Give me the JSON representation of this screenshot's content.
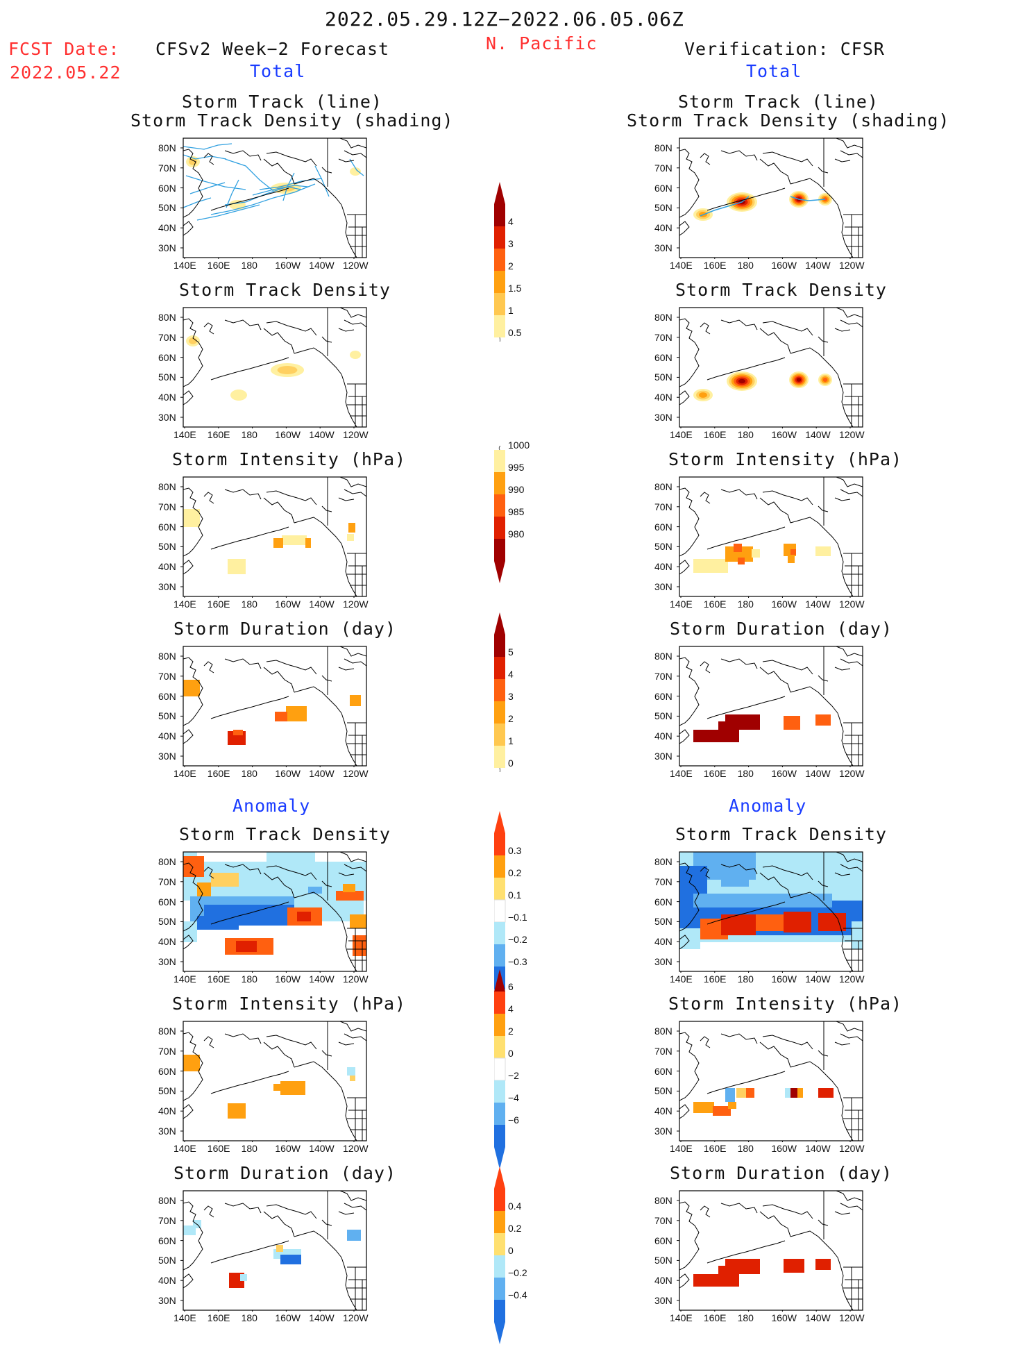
{
  "header": {
    "period": "2022.05.29.12Z−2022.06.05.06Z",
    "region": "N. Pacific",
    "fcst_label": "FCST Date:",
    "fcst_date": "2022.05.22",
    "left_column_title": "CFSv2 Week−2 Forecast",
    "right_column_title": "Verification: CFSR",
    "total_label": "Total",
    "anomaly_label": "Anomaly"
  },
  "axes": {
    "lat_labels": [
      "80N",
      "70N",
      "60N",
      "50N",
      "40N",
      "30N"
    ],
    "lon_labels": [
      "140E",
      "160E",
      "180",
      "160W",
      "140W",
      "120W"
    ]
  },
  "panel_titles": {
    "track_line": "Storm Track (line)",
    "track_density_shading": "Storm Track Density (shading)",
    "track_density": "Storm Track Density",
    "intensity": "Storm Intensity (hPa)",
    "duration": "Storm Duration (day)"
  },
  "colorbars": [
    {
      "id": "density_total",
      "labels": [
        "4",
        "3",
        "2",
        "1.5",
        "1",
        "0.5"
      ],
      "colors": [
        "#a00000",
        "#e02000",
        "#ff6010",
        "#ffa010",
        "#ffc850",
        "#fff0a0"
      ],
      "arrow_top": true,
      "arrow_bottom": false,
      "arrow_colors": [
        "#a00000"
      ]
    },
    {
      "id": "intensity_total",
      "labels": [
        "1000",
        "995",
        "990",
        "985",
        "980"
      ],
      "colors": [
        "#fff0a0",
        "#ffa010",
        "#ff6010",
        "#e02000",
        "#a00000"
      ],
      "arrow_top": false,
      "arrow_bottom": true,
      "arrow_colors": [
        "#a00000"
      ]
    },
    {
      "id": "duration_total",
      "labels": [
        "5",
        "4",
        "3",
        "2",
        "1",
        "0"
      ],
      "colors": [
        "#a00000",
        "#e02000",
        "#ff6010",
        "#ffa010",
        "#ffc850",
        "#fff0a0"
      ],
      "arrow_top": true,
      "arrow_bottom": false,
      "arrow_colors": [
        "#a00000"
      ]
    },
    {
      "id": "density_anom",
      "labels": [
        "0.3",
        "0.2",
        "0.1",
        "−0.1",
        "−0.2",
        "−0.3"
      ],
      "colors": [
        "#ff4010",
        "#ffa010",
        "#ffe070",
        "#ffffff",
        "#b0e8f8",
        "#60b0f0",
        "#2070e0"
      ],
      "arrow_top": true,
      "arrow_bottom": true,
      "arrow_colors": [
        "#ff4010",
        "#2070e0"
      ]
    },
    {
      "id": "intensity_anom",
      "labels": [
        "6",
        "4",
        "2",
        "0",
        "−2",
        "−4",
        "−6"
      ],
      "colors": [
        "#ff4010",
        "#ffa010",
        "#ffe070",
        "#ffffff",
        "#b0e8f8",
        "#60b0f0",
        "#2070e0"
      ],
      "arrow_top": true,
      "arrow_bottom": true,
      "arrow_colors": [
        "#a00000",
        "#2070e0"
      ]
    },
    {
      "id": "duration_anom",
      "labels": [
        "0.4",
        "0.2",
        "0",
        "−0.2",
        "−0.4"
      ],
      "colors": [
        "#ff4010",
        "#ffa010",
        "#ffe070",
        "#b0e8f8",
        "#60b0f0",
        "#2070e0"
      ],
      "arrow_top": true,
      "arrow_bottom": true,
      "arrow_colors": [
        "#ff4010",
        "#2070e0"
      ]
    }
  ],
  "palette": {
    "pale_yellow": "#fff0a0",
    "yellow": "#ffd060",
    "orange": "#ffa010",
    "dark_orange": "#ff6010",
    "red": "#e02000",
    "dark_red": "#a00000",
    "light_blue": "#b0e8f8",
    "mid_blue": "#60b0f0",
    "blue": "#2070e0",
    "track_line": "#30a0e0"
  }
}
